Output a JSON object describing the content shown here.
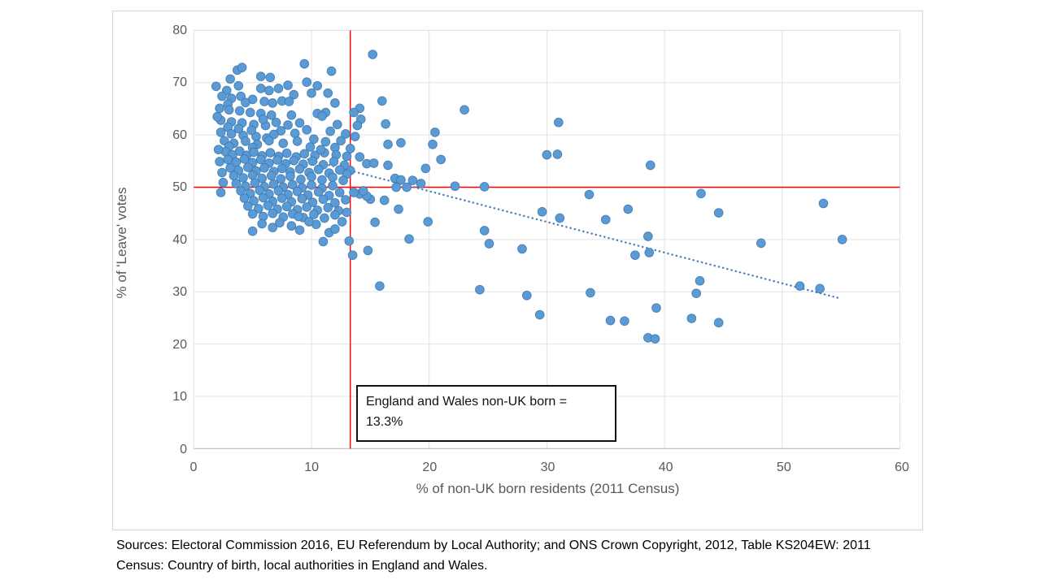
{
  "chart_data": {
    "type": "scatter",
    "title": "",
    "xlabel": "% of non-UK born residents (2011 Census)",
    "ylabel": "% of 'Leave' votes",
    "xlim": [
      0,
      60
    ],
    "ylim": [
      0,
      80
    ],
    "x_ticks": [
      0,
      10,
      20,
      30,
      40,
      50,
      60
    ],
    "y_ticks": [
      0,
      10,
      20,
      30,
      40,
      50,
      60,
      70,
      80
    ],
    "grid": true,
    "legend": "none",
    "colors": {
      "marker_fill": "#5B9BD5",
      "marker_edge": "#3C76AC",
      "trendline": "#4A7EBB",
      "reference_line": "#FF0000",
      "gridline": "#E2E2E2",
      "axis_line": "#BFBFBF",
      "tick_text": "#595959"
    },
    "reference_lines": {
      "vertical_x": 13.3,
      "horizontal_y": 50
    },
    "trendline": {
      "style": "dotted",
      "from": [
        9.7,
        55.3
      ],
      "to": [
        54.8,
        28.8
      ]
    },
    "annotation": {
      "line1": "England and Wales non-UK born =",
      "line2": "13.3%"
    },
    "points": [
      [
        15.2,
        75.4
      ],
      [
        9.4,
        73.6
      ],
      [
        11.7,
        72.2
      ],
      [
        16.0,
        66.5
      ],
      [
        16.3,
        62.1
      ],
      [
        23.0,
        64.8
      ],
      [
        31.0,
        62.4
      ],
      [
        20.5,
        60.5
      ],
      [
        16.5,
        58.2
      ],
      [
        17.6,
        58.5
      ],
      [
        20.3,
        58.2
      ],
      [
        21.0,
        55.3
      ],
      [
        19.7,
        53.6
      ],
      [
        30.0,
        56.2
      ],
      [
        30.9,
        56.3
      ],
      [
        38.8,
        54.2
      ],
      [
        22.2,
        50.2
      ],
      [
        24.7,
        50.1
      ],
      [
        33.6,
        48.6
      ],
      [
        36.9,
        45.8
      ],
      [
        35.0,
        43.8
      ],
      [
        43.1,
        48.8
      ],
      [
        44.6,
        45.1
      ],
      [
        38.6,
        40.6
      ],
      [
        37.5,
        37.0
      ],
      [
        38.7,
        37.5
      ],
      [
        48.2,
        39.3
      ],
      [
        53.5,
        46.9
      ],
      [
        55.1,
        40.0
      ],
      [
        43.0,
        32.1
      ],
      [
        42.7,
        29.7
      ],
      [
        33.7,
        29.8
      ],
      [
        51.5,
        31.1
      ],
      [
        53.2,
        30.6
      ],
      [
        39.3,
        26.9
      ],
      [
        35.4,
        24.5
      ],
      [
        36.6,
        24.4
      ],
      [
        42.3,
        24.9
      ],
      [
        44.6,
        24.1
      ],
      [
        38.6,
        21.2
      ],
      [
        39.2,
        21.0
      ],
      [
        24.3,
        30.4
      ],
      [
        28.3,
        29.3
      ],
      [
        29.4,
        25.6
      ],
      [
        15.8,
        31.1
      ],
      [
        24.7,
        41.7
      ],
      [
        25.1,
        39.2
      ],
      [
        27.9,
        38.2
      ],
      [
        29.6,
        45.3
      ],
      [
        31.1,
        44.1
      ],
      [
        19.9,
        43.4
      ],
      [
        18.3,
        40.1
      ],
      [
        17.4,
        45.8
      ],
      [
        16.2,
        47.5
      ],
      [
        15.0,
        47.7
      ],
      [
        15.4,
        43.3
      ],
      [
        14.1,
        65.1
      ],
      [
        13.6,
        64.3
      ],
      [
        14.2,
        63.0
      ],
      [
        13.9,
        61.8
      ],
      [
        13.7,
        59.7
      ],
      [
        13.3,
        57.4
      ],
      [
        14.1,
        55.8
      ],
      [
        14.7,
        54.5
      ],
      [
        15.3,
        54.6
      ],
      [
        16.5,
        54.2
      ],
      [
        17.1,
        51.7
      ],
      [
        17.6,
        51.4
      ],
      [
        18.6,
        51.3
      ],
      [
        19.3,
        50.7
      ],
      [
        13.3,
        53.2
      ],
      [
        13.0,
        52.5
      ],
      [
        17.2,
        50.0
      ],
      [
        18.1,
        50.0
      ],
      [
        14.1,
        48.7
      ],
      [
        14.7,
        48.3
      ],
      [
        13.6,
        49.0
      ],
      [
        14.4,
        49.3
      ],
      [
        12.6,
        43.4
      ],
      [
        13.2,
        39.7
      ],
      [
        13.5,
        37.0
      ],
      [
        14.8,
        37.9
      ],
      [
        3.7,
        72.4
      ],
      [
        4.1,
        72.9
      ],
      [
        3.1,
        70.7
      ],
      [
        5.7,
        71.2
      ],
      [
        6.5,
        71.0
      ],
      [
        3.8,
        69.4
      ],
      [
        2.8,
        68.5
      ],
      [
        5.7,
        68.9
      ],
      [
        6.4,
        68.5
      ],
      [
        7.2,
        68.9
      ],
      [
        8.0,
        69.5
      ],
      [
        10.5,
        69.4
      ],
      [
        9.6,
        70.1
      ],
      [
        1.9,
        69.3
      ],
      [
        2.4,
        67.4
      ],
      [
        3.2,
        67.0
      ],
      [
        4.0,
        67.4
      ],
      [
        5.0,
        66.8
      ],
      [
        8.5,
        67.7
      ],
      [
        10.0,
        68.0
      ],
      [
        11.4,
        68.0
      ],
      [
        6.0,
        66.4
      ],
      [
        6.7,
        66.1
      ],
      [
        7.5,
        66.5
      ],
      [
        8.1,
        66.4
      ],
      [
        2.9,
        65.9
      ],
      [
        4.4,
        66.2
      ],
      [
        2.2,
        65.1
      ],
      [
        3.0,
        64.8
      ],
      [
        3.9,
        64.6
      ],
      [
        4.8,
        64.3
      ],
      [
        5.7,
        64.1
      ],
      [
        6.6,
        63.8
      ],
      [
        10.5,
        64.1
      ],
      [
        11.2,
        64.3
      ],
      [
        10.9,
        63.6
      ],
      [
        12.0,
        66.1
      ],
      [
        8.3,
        63.8
      ],
      [
        2.3,
        62.8
      ],
      [
        3.2,
        62.5
      ],
      [
        4.1,
        62.3
      ],
      [
        5.1,
        62.0
      ],
      [
        6.1,
        61.8
      ],
      [
        7.0,
        62.4
      ],
      [
        9.0,
        62.3
      ],
      [
        12.2,
        62.0
      ],
      [
        2.9,
        61.5
      ],
      [
        5.9,
        63.0
      ],
      [
        8.0,
        61.9
      ],
      [
        2.0,
        63.5
      ],
      [
        2.3,
        60.5
      ],
      [
        3.2,
        60.2
      ],
      [
        4.2,
        59.9
      ],
      [
        5.3,
        59.7
      ],
      [
        6.2,
        59.4
      ],
      [
        7.4,
        60.8
      ],
      [
        8.6,
        60.3
      ],
      [
        9.6,
        61.0
      ],
      [
        11.6,
        60.7
      ],
      [
        3.8,
        61.2
      ],
      [
        4.9,
        60.9
      ],
      [
        6.8,
        60.1
      ],
      [
        12.9,
        60.2
      ],
      [
        2.6,
        58.9
      ],
      [
        3.4,
        58.4
      ],
      [
        4.4,
        58.8
      ],
      [
        5.4,
        58.2
      ],
      [
        6.4,
        58.9
      ],
      [
        7.6,
        58.4
      ],
      [
        8.8,
        58.8
      ],
      [
        10.2,
        59.2
      ],
      [
        11.2,
        58.7
      ],
      [
        3.0,
        57.8
      ],
      [
        5.0,
        57.6
      ],
      [
        12.0,
        57.6
      ],
      [
        12.5,
        58.9
      ],
      [
        9.9,
        57.7
      ],
      [
        2.7,
        56.8
      ],
      [
        3.3,
        56.2
      ],
      [
        3.9,
        56.9
      ],
      [
        4.5,
        56.1
      ],
      [
        5.1,
        56.7
      ],
      [
        5.8,
        56.0
      ],
      [
        6.5,
        56.6
      ],
      [
        7.2,
        55.9
      ],
      [
        7.9,
        56.5
      ],
      [
        8.7,
        55.8
      ],
      [
        9.4,
        56.4
      ],
      [
        10.3,
        56.1
      ],
      [
        11.1,
        56.6
      ],
      [
        12.1,
        56.2
      ],
      [
        2.1,
        57.2
      ],
      [
        2.9,
        55.3
      ],
      [
        3.6,
        54.8
      ],
      [
        4.3,
        55.4
      ],
      [
        5.0,
        54.7
      ],
      [
        5.7,
        55.3
      ],
      [
        6.4,
        54.6
      ],
      [
        7.1,
        55.2
      ],
      [
        7.8,
        54.5
      ],
      [
        8.5,
        55.1
      ],
      [
        9.3,
        54.4
      ],
      [
        10.1,
        55.0
      ],
      [
        11.0,
        54.3
      ],
      [
        11.9,
        54.9
      ],
      [
        12.8,
        54.2
      ],
      [
        2.2,
        54.9
      ],
      [
        3.1,
        53.7
      ],
      [
        3.8,
        53.2
      ],
      [
        4.6,
        53.8
      ],
      [
        5.3,
        53.1
      ],
      [
        6.0,
        53.7
      ],
      [
        6.8,
        53.0
      ],
      [
        7.5,
        53.6
      ],
      [
        8.2,
        52.9
      ],
      [
        9.0,
        53.5
      ],
      [
        9.8,
        52.8
      ],
      [
        10.6,
        53.4
      ],
      [
        11.5,
        52.7
      ],
      [
        12.4,
        53.3
      ],
      [
        2.4,
        52.8
      ],
      [
        3.4,
        52.2
      ],
      [
        4.2,
        51.8
      ],
      [
        5.0,
        52.3
      ],
      [
        5.8,
        51.7
      ],
      [
        6.6,
        52.2
      ],
      [
        7.4,
        51.6
      ],
      [
        8.2,
        52.1
      ],
      [
        9.1,
        51.5
      ],
      [
        10.0,
        52.0
      ],
      [
        10.9,
        51.4
      ],
      [
        11.8,
        51.9
      ],
      [
        12.7,
        51.3
      ],
      [
        13.0,
        55.9
      ],
      [
        10.8,
        57.2
      ],
      [
        3.6,
        50.7
      ],
      [
        4.4,
        50.2
      ],
      [
        5.2,
        50.8
      ],
      [
        6.0,
        50.1
      ],
      [
        6.8,
        50.6
      ],
      [
        7.6,
        50.0
      ],
      [
        8.4,
        50.5
      ],
      [
        9.2,
        49.9
      ],
      [
        10.0,
        50.4
      ],
      [
        10.9,
        49.8
      ],
      [
        11.8,
        50.3
      ],
      [
        2.5,
        50.9
      ],
      [
        4.0,
        49.3
      ],
      [
        4.8,
        48.8
      ],
      [
        5.6,
        49.4
      ],
      [
        6.4,
        48.7
      ],
      [
        7.2,
        49.3
      ],
      [
        8.0,
        48.6
      ],
      [
        8.8,
        49.2
      ],
      [
        9.7,
        48.5
      ],
      [
        10.6,
        49.1
      ],
      [
        11.5,
        48.4
      ],
      [
        12.4,
        49.0
      ],
      [
        4.3,
        47.9
      ],
      [
        5.1,
        47.4
      ],
      [
        5.9,
        48.0
      ],
      [
        6.7,
        47.3
      ],
      [
        7.5,
        47.9
      ],
      [
        8.3,
        47.2
      ],
      [
        9.2,
        47.8
      ],
      [
        10.1,
        47.1
      ],
      [
        11.0,
        47.7
      ],
      [
        12.0,
        47.0
      ],
      [
        12.9,
        47.6
      ],
      [
        2.3,
        49.0
      ],
      [
        4.6,
        46.4
      ],
      [
        5.5,
        45.9
      ],
      [
        6.3,
        46.5
      ],
      [
        7.1,
        45.8
      ],
      [
        7.9,
        46.3
      ],
      [
        8.8,
        45.7
      ],
      [
        9.6,
        46.2
      ],
      [
        10.5,
        45.6
      ],
      [
        11.4,
        46.1
      ],
      [
        12.3,
        45.5
      ],
      [
        5.0,
        44.9
      ],
      [
        5.9,
        44.4
      ],
      [
        6.7,
        45.0
      ],
      [
        7.6,
        44.3
      ],
      [
        8.4,
        44.9
      ],
      [
        9.3,
        44.2
      ],
      [
        10.2,
        44.8
      ],
      [
        11.1,
        44.1
      ],
      [
        12.0,
        44.7
      ],
      [
        8.9,
        44.4
      ],
      [
        13.0,
        45.2
      ],
      [
        5.0,
        41.6
      ],
      [
        6.7,
        42.3
      ],
      [
        5.8,
        43.0
      ],
      [
        7.3,
        43.2
      ],
      [
        8.3,
        42.6
      ],
      [
        9.0,
        41.8
      ],
      [
        10.4,
        42.9
      ],
      [
        11.0,
        39.6
      ],
      [
        11.5,
        41.3
      ],
      [
        9.8,
        43.4
      ],
      [
        12.0,
        42.0
      ]
    ]
  },
  "sources": {
    "line1": "Sources: Electoral Commission 2016, EU Referendum by Local Authority; and ONS Crown Copyright, 2012, Table KS204EW: 2011",
    "line2": "Census: Country of birth, local authorities in England and Wales."
  }
}
